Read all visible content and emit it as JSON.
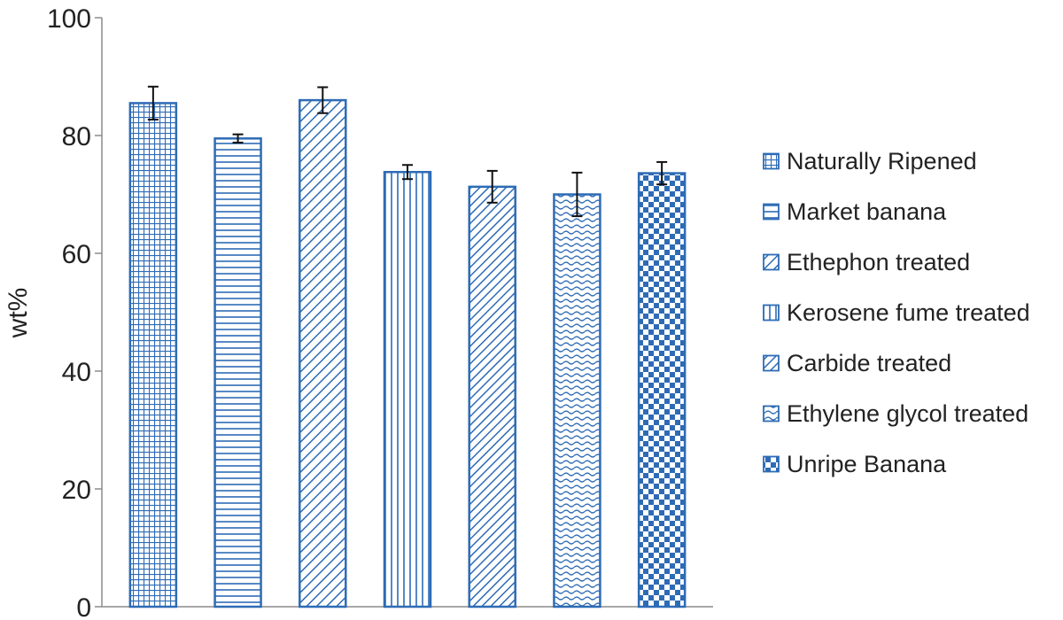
{
  "chart_data": {
    "type": "bar",
    "title": "",
    "xlabel": "",
    "ylabel": "wt%",
    "ylim": [
      0,
      100
    ],
    "yticks": [
      0,
      20,
      40,
      60,
      80,
      100
    ],
    "grid": false,
    "legend_position": "right",
    "bar_color": "#2e6bb5",
    "series": [
      {
        "name": "Naturally Ripened",
        "value": 85.5,
        "error": 2.8,
        "pattern": "grid"
      },
      {
        "name": "Market banana",
        "value": 79.5,
        "error": 0.7,
        "pattern": "horizontal"
      },
      {
        "name": "Ethephon treated",
        "value": 86.0,
        "error": 2.2,
        "pattern": "diagonal-down"
      },
      {
        "name": "Kerosene fume treated",
        "value": 73.8,
        "error": 1.2,
        "pattern": "vertical"
      },
      {
        "name": "Carbide treated",
        "value": 71.3,
        "error": 2.7,
        "pattern": "diagonal-down-dense"
      },
      {
        "name": "Ethylene glycol treated",
        "value": 70.0,
        "error": 3.7,
        "pattern": "wave"
      },
      {
        "name": "Unripe Banana",
        "value": 73.6,
        "error": 1.9,
        "pattern": "checker"
      }
    ]
  }
}
